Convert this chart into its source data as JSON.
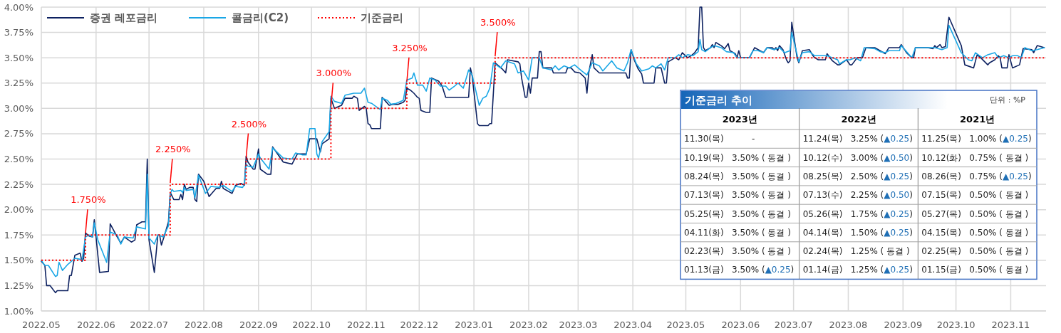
{
  "chart_data": [
    {
      "type": "line",
      "xlim": [
        "2022-05-01",
        "2023-11-21"
      ],
      "ylim": [
        1.0,
        4.0
      ],
      "xticks": [
        {
          "value": "2022-05",
          "label": "2022.05"
        },
        {
          "value": "2022-06",
          "label": "2022.06"
        },
        {
          "value": "2022-07",
          "label": "2022.07"
        },
        {
          "value": "2022-08",
          "label": "2022.08"
        },
        {
          "value": "2022-09",
          "label": "2022.09"
        },
        {
          "value": "2022-10",
          "label": "2022.10"
        },
        {
          "value": "2022-11",
          "label": "2022.11"
        },
        {
          "value": "2022-12",
          "label": "2022.12"
        },
        {
          "value": "2023-01",
          "label": "2023.01"
        },
        {
          "value": "2023-02",
          "label": "2023.02"
        },
        {
          "value": "2023-03",
          "label": "2023.03"
        },
        {
          "value": "2023-04",
          "label": "2023.04"
        },
        {
          "value": "2023-05",
          "label": "2023.05"
        },
        {
          "value": "2023-06",
          "label": "2023.06"
        },
        {
          "value": "2023-07",
          "label": "2023.07"
        },
        {
          "value": "2023-08",
          "label": "2023.08"
        },
        {
          "value": "2023-09",
          "label": "2023.09"
        },
        {
          "value": "2023-10",
          "label": "2023.10"
        },
        {
          "value": "2023-11",
          "label": "2023.11"
        }
      ],
      "yticks": [
        {
          "value": 1.0,
          "label": "1.00%"
        },
        {
          "value": 1.25,
          "label": "1.25%"
        },
        {
          "value": 1.5,
          "label": "1.50%"
        },
        {
          "value": 1.75,
          "label": "1.75%"
        },
        {
          "value": 2.0,
          "label": "2.00%"
        },
        {
          "value": 2.25,
          "label": "2.25%"
        },
        {
          "value": 2.5,
          "label": "2.50%"
        },
        {
          "value": 2.75,
          "label": "2.75%"
        },
        {
          "value": 3.0,
          "label": "3.00%"
        },
        {
          "value": 3.25,
          "label": "3.25%"
        },
        {
          "value": 3.5,
          "label": "3.50%"
        },
        {
          "value": 3.75,
          "label": "3.75%"
        },
        {
          "value": 4.0,
          "label": "4.00%"
        }
      ],
      "grid": true,
      "legend": "top left",
      "marker": "none",
      "series": [
        {
          "name": "증권 레포금리",
          "color": "#0d2160",
          "line_style": "solid",
          "x": [
            "2022-05-01",
            "2022-05-03",
            "2022-05-04",
            "2022-05-06",
            "2022-05-09",
            "2022-05-10",
            "2022-05-16",
            "2022-05-17",
            "2022-05-18",
            "2022-05-20",
            "2022-05-23",
            "2022-05-24",
            "2022-05-25",
            "2022-05-26",
            "2022-05-28",
            "2022-05-30",
            "2022-05-31",
            "2022-06-03",
            "2022-06-08",
            "2022-06-09",
            "2022-06-13",
            "2022-06-15",
            "2022-06-17",
            "2022-06-21",
            "2022-06-23",
            "2022-06-24",
            "2022-06-27",
            "2022-06-29",
            "2022-06-30",
            "2022-07-01",
            "2022-07-04",
            "2022-07-06",
            "2022-07-07",
            "2022-07-08",
            "2022-07-10",
            "2022-07-12",
            "2022-07-13",
            "2022-07-15",
            "2022-07-18",
            "2022-07-19",
            "2022-07-20",
            "2022-07-21",
            "2022-07-22",
            "2022-07-24",
            "2022-07-26",
            "2022-07-27",
            "2022-07-28",
            "2022-07-29",
            "2022-08-01",
            "2022-08-04",
            "2022-08-08",
            "2022-08-10",
            "2022-08-11",
            "2022-08-12",
            "2022-08-17",
            "2022-08-19",
            "2022-08-22",
            "2022-08-24",
            "2022-08-25",
            "2022-08-26",
            "2022-08-29",
            "2022-08-30",
            "2022-09-01",
            "2022-09-02",
            "2022-09-06",
            "2022-09-08",
            "2022-09-09",
            "2022-09-15",
            "2022-09-20",
            "2022-09-23",
            "2022-09-28",
            "2022-09-30",
            "2022-10-04",
            "2022-10-06",
            "2022-10-07",
            "2022-10-11",
            "2022-10-12",
            "2022-10-14",
            "2022-10-18",
            "2022-10-20",
            "2022-10-24",
            "2022-10-25",
            "2022-10-27",
            "2022-10-28",
            "2022-10-31",
            "2022-11-01",
            "2022-11-02",
            "2022-11-03",
            "2022-11-04",
            "2022-11-09",
            "2022-11-10",
            "2022-11-12",
            "2022-11-14",
            "2022-11-16",
            "2022-11-19",
            "2022-11-22",
            "2022-11-23",
            "2022-11-24",
            "2022-11-26",
            "2022-11-28",
            "2022-11-30",
            "2022-12-01",
            "2022-12-02",
            "2022-12-05",
            "2022-12-07",
            "2022-12-08",
            "2022-12-12",
            "2022-12-14",
            "2022-12-16",
            "2022-12-29",
            "2022-12-30",
            "2022-12-31",
            "2023-01-03",
            "2023-01-04",
            "2023-01-09",
            "2023-01-10",
            "2023-01-11",
            "2023-01-13",
            "2023-01-17",
            "2023-01-19",
            "2023-01-20",
            "2023-01-26",
            "2023-01-27",
            "2023-01-28",
            "2023-01-30",
            "2023-01-31",
            "2023-02-01",
            "2023-02-02",
            "2023-02-03",
            "2023-02-06",
            "2023-02-07",
            "2023-02-08",
            "2023-02-09",
            "2023-02-14",
            "2023-02-15",
            "2023-02-22",
            "2023-02-23",
            "2023-02-25",
            "2023-02-27",
            "2023-03-02",
            "2023-03-05",
            "2023-03-06",
            "2023-03-07",
            "2023-03-09",
            "2023-03-10",
            "2023-03-13",
            "2023-03-28",
            "2023-03-29",
            "2023-03-30",
            "2023-03-31",
            "2023-04-02",
            "2023-04-04",
            "2023-04-06",
            "2023-04-07",
            "2023-04-13",
            "2023-04-14",
            "2023-04-17",
            "2023-04-19",
            "2023-04-20",
            "2023-04-21",
            "2023-04-25",
            "2023-04-27",
            "2023-04-29",
            "2023-05-02",
            "2023-05-04",
            "2023-05-06",
            "2023-05-08",
            "2023-05-09",
            "2023-05-10",
            "2023-05-11",
            "2023-05-12",
            "2023-05-15",
            "2023-05-16",
            "2023-05-17",
            "2023-05-18",
            "2023-05-21",
            "2023-05-23",
            "2023-05-25",
            "2023-05-26",
            "2023-05-29",
            "2023-05-30",
            "2023-05-31",
            "2023-06-01",
            "2023-06-06",
            "2023-06-09",
            "2023-06-12",
            "2023-06-14",
            "2023-06-16",
            "2023-06-19",
            "2023-06-20",
            "2023-06-21",
            "2023-06-22",
            "2023-06-23",
            "2023-06-25",
            "2023-06-27",
            "2023-06-28",
            "2023-06-29",
            "2023-06-30",
            "2023-07-03",
            "2023-07-04",
            "2023-07-06",
            "2023-07-10",
            "2023-07-12",
            "2023-07-13",
            "2023-07-15",
            "2023-07-19",
            "2023-07-20",
            "2023-07-23",
            "2023-07-26",
            "2023-07-27",
            "2023-07-31",
            "2023-08-02",
            "2023-08-03",
            "2023-08-06",
            "2023-08-09",
            "2023-08-11",
            "2023-08-16",
            "2023-08-19",
            "2023-08-22",
            "2023-08-24",
            "2023-08-30",
            "2023-08-31",
            "2023-09-03",
            "2023-09-06",
            "2023-09-07",
            "2023-09-08",
            "2023-09-15",
            "2023-09-18",
            "2023-09-19",
            "2023-09-20",
            "2023-09-22",
            "2023-09-23",
            "2023-09-25",
            "2023-09-27",
            "2023-10-04",
            "2023-10-06",
            "2023-10-11",
            "2023-10-13",
            "2023-10-15",
            "2023-10-19",
            "2023-10-20",
            "2023-10-23",
            "2023-10-25",
            "2023-10-26",
            "2023-10-27",
            "2023-10-30",
            "2023-10-31",
            "2023-11-02",
            "2023-11-06",
            "2023-11-08",
            "2023-11-13",
            "2023-11-14",
            "2023-11-16",
            "2023-11-20"
          ],
          "values": [
            1.49,
            1.45,
            1.25,
            1.25,
            1.18,
            1.2,
            1.2,
            1.35,
            1.35,
            1.55,
            1.57,
            1.49,
            1.52,
            1.77,
            1.74,
            1.73,
            1.9,
            1.38,
            1.39,
            1.86,
            1.73,
            1.67,
            1.73,
            1.68,
            1.7,
            1.85,
            1.88,
            1.88,
            2.5,
            1.7,
            1.38,
            1.75,
            1.75,
            1.65,
            1.76,
            1.88,
            2.17,
            2.1,
            2.1,
            2.15,
            2.1,
            2.25,
            2.2,
            2.22,
            2.22,
            2.1,
            2.08,
            2.35,
            2.28,
            2.13,
            2.21,
            2.21,
            2.28,
            2.21,
            2.16,
            2.24,
            2.26,
            2.24,
            2.53,
            2.47,
            2.4,
            2.4,
            2.6,
            2.4,
            2.35,
            2.35,
            2.62,
            2.47,
            2.45,
            2.55,
            2.55,
            2.7,
            2.7,
            2.57,
            2.65,
            2.7,
            3.1,
            3.0,
            3.03,
            3.1,
            3.1,
            3.12,
            3.1,
            2.98,
            3.02,
            3.0,
            2.85,
            2.84,
            2.8,
            2.8,
            3.11,
            3.07,
            3.03,
            3.04,
            3.04,
            3.06,
            3.08,
            3.2,
            3.18,
            3.15,
            3.11,
            3.1,
            2.98,
            2.96,
            2.96,
            3.3,
            3.27,
            3.22,
            3.11,
            3.11,
            3.4,
            3.32,
            2.85,
            2.83,
            2.83,
            2.85,
            2.85,
            3.45,
            3.39,
            3.35,
            3.48,
            3.46,
            3.44,
            3.3,
            3.11,
            3.11,
            3.25,
            3.15,
            3.3,
            3.3,
            3.56,
            3.56,
            3.4,
            3.4,
            3.35,
            3.35,
            3.4,
            3.4,
            3.36,
            3.35,
            3.3,
            3.15,
            3.35,
            3.53,
            3.4,
            3.35,
            3.35,
            3.3,
            3.3,
            3.58,
            3.47,
            3.39,
            3.34,
            3.25,
            3.25,
            3.4,
            3.4,
            3.25,
            3.25,
            3.46,
            3.5,
            3.48,
            3.55,
            3.5,
            3.52,
            3.55,
            3.6,
            4.0,
            4.0,
            3.6,
            3.57,
            3.6,
            3.63,
            3.6,
            3.65,
            3.62,
            3.59,
            3.64,
            3.57,
            3.54,
            3.5,
            3.57,
            3.5,
            3.5,
            3.6,
            3.57,
            3.55,
            3.6,
            3.6,
            3.58,
            3.6,
            3.57,
            3.62,
            3.58,
            3.48,
            3.45,
            3.47,
            3.85,
            3.5,
            3.45,
            3.57,
            3.58,
            3.52,
            3.5,
            3.48,
            3.48,
            3.54,
            3.47,
            3.43,
            3.43,
            3.48,
            3.43,
            3.43,
            3.5,
            3.5,
            3.6,
            3.6,
            3.57,
            3.54,
            3.6,
            3.6,
            3.63,
            3.55,
            3.5,
            3.5,
            3.6,
            3.6,
            3.59,
            3.62,
            3.6,
            3.63,
            3.6,
            3.61,
            3.9,
            3.62,
            3.43,
            3.4,
            3.53,
            3.5,
            3.43,
            3.45,
            3.48,
            3.52,
            3.5,
            3.4,
            3.4,
            3.53,
            3.4,
            3.43,
            3.59,
            3.58,
            3.55,
            3.62,
            3.6
          ]
        },
        {
          "name": "콜금리(C2)",
          "color": "#1aa7e6",
          "line_style": "solid",
          "x": [
            "2022-05-01",
            "2022-05-03",
            "2022-05-05",
            "2022-05-09",
            "2022-05-10",
            "2022-05-11",
            "2022-05-13",
            "2022-05-16",
            "2022-05-20",
            "2022-05-23",
            "2022-05-24",
            "2022-05-26",
            "2022-05-28",
            "2022-05-30",
            "2022-05-31",
            "2022-06-02",
            "2022-06-07",
            "2022-06-09",
            "2022-06-13",
            "2022-06-15",
            "2022-06-17",
            "2022-06-22",
            "2022-06-24",
            "2022-06-29",
            "2022-06-30",
            "2022-07-01",
            "2022-07-04",
            "2022-07-06",
            "2022-07-09",
            "2022-07-12",
            "2022-07-13",
            "2022-07-14",
            "2022-07-15",
            "2022-07-19",
            "2022-07-20",
            "2022-07-21",
            "2022-07-22",
            "2022-07-26",
            "2022-07-27",
            "2022-07-29",
            "2022-08-02",
            "2022-08-05",
            "2022-08-10",
            "2022-08-12",
            "2022-08-17",
            "2022-08-19",
            "2022-08-23",
            "2022-08-24",
            "2022-08-25",
            "2022-08-26",
            "2022-08-29",
            "2022-09-01",
            "2022-09-02",
            "2022-09-07",
            "2022-09-09",
            "2022-09-15",
            "2022-09-20",
            "2022-09-22",
            "2022-09-26",
            "2022-09-28",
            "2022-09-30",
            "2022-10-03",
            "2022-10-04",
            "2022-10-05",
            "2022-10-07",
            "2022-10-11",
            "2022-10-12",
            "2022-10-14",
            "2022-10-18",
            "2022-10-20",
            "2022-10-25",
            "2022-10-29",
            "2022-10-31",
            "2022-11-02",
            "2022-11-04",
            "2022-11-08",
            "2022-11-09",
            "2022-11-10",
            "2022-11-13",
            "2022-11-15",
            "2022-11-18",
            "2022-11-22",
            "2022-11-24",
            "2022-11-27",
            "2022-11-28",
            "2022-11-30",
            "2022-12-03",
            "2022-12-05",
            "2022-12-07",
            "2022-12-10",
            "2022-12-13",
            "2022-12-16",
            "2022-12-18",
            "2022-12-21",
            "2022-12-23",
            "2022-12-26",
            "2022-12-29",
            "2022-12-31",
            "2023-01-04",
            "2023-01-06",
            "2023-01-08",
            "2023-01-10",
            "2023-01-12",
            "2023-01-16",
            "2023-01-19",
            "2023-01-24",
            "2023-01-26",
            "2023-01-29",
            "2023-02-01",
            "2023-02-03",
            "2023-02-07",
            "2023-02-09",
            "2023-02-14",
            "2023-02-16",
            "2023-02-18",
            "2023-02-21",
            "2023-02-24",
            "2023-02-27",
            "2023-03-03",
            "2023-03-06",
            "2023-03-09",
            "2023-03-13",
            "2023-03-15",
            "2023-03-20",
            "2023-03-23",
            "2023-03-27",
            "2023-03-29",
            "2023-03-31",
            "2023-04-03",
            "2023-04-06",
            "2023-04-10",
            "2023-04-12",
            "2023-04-14",
            "2023-04-17",
            "2023-04-19",
            "2023-04-21",
            "2023-04-25",
            "2023-04-27",
            "2023-04-29",
            "2023-05-02",
            "2023-05-05",
            "2023-05-08",
            "2023-05-09",
            "2023-05-10",
            "2023-05-12",
            "2023-05-15",
            "2023-05-17",
            "2023-05-21",
            "2023-05-24",
            "2023-05-28",
            "2023-05-30",
            "2023-06-03",
            "2023-06-06",
            "2023-06-08",
            "2023-06-11",
            "2023-06-14",
            "2023-06-16",
            "2023-06-20",
            "2023-06-23",
            "2023-06-26",
            "2023-06-29",
            "2023-06-30",
            "2023-07-04",
            "2023-07-06",
            "2023-07-10",
            "2023-07-13",
            "2023-07-16",
            "2023-07-20",
            "2023-07-23",
            "2023-07-26",
            "2023-07-27",
            "2023-07-31",
            "2023-08-02",
            "2023-08-05",
            "2023-08-08",
            "2023-08-10",
            "2023-08-16",
            "2023-08-19",
            "2023-08-22",
            "2023-08-24",
            "2023-08-30",
            "2023-08-31",
            "2023-09-03",
            "2023-09-06",
            "2023-09-08",
            "2023-09-15",
            "2023-09-19",
            "2023-09-23",
            "2023-09-26",
            "2023-09-27",
            "2023-10-04",
            "2023-10-08",
            "2023-10-10",
            "2023-10-12",
            "2023-10-16",
            "2023-10-19",
            "2023-10-23",
            "2023-10-25",
            "2023-10-28",
            "2023-10-31",
            "2023-11-02",
            "2023-11-05",
            "2023-11-07",
            "2023-11-09",
            "2023-11-13",
            "2023-11-16",
            "2023-11-20"
          ],
          "values": [
            1.5,
            1.45,
            1.45,
            1.34,
            1.35,
            1.48,
            1.4,
            1.46,
            1.52,
            1.51,
            1.5,
            1.73,
            1.75,
            1.73,
            1.87,
            1.7,
            1.48,
            1.78,
            1.75,
            1.66,
            1.73,
            1.72,
            1.83,
            1.81,
            2.35,
            1.72,
            1.66,
            1.75,
            1.73,
            1.84,
            2.15,
            2.2,
            2.18,
            2.19,
            2.17,
            2.22,
            2.19,
            2.2,
            2.12,
            2.34,
            2.16,
            2.23,
            2.22,
            2.24,
            2.18,
            2.23,
            2.22,
            2.25,
            2.45,
            2.43,
            2.42,
            2.55,
            2.51,
            2.4,
            2.61,
            2.51,
            2.5,
            2.56,
            2.54,
            2.54,
            2.8,
            2.8,
            2.55,
            2.51,
            2.67,
            2.77,
            3.12,
            3.07,
            3.05,
            3.13,
            3.15,
            3.15,
            3.2,
            3.06,
            3.05,
            3.0,
            2.99,
            3.1,
            3.08,
            3.04,
            3.05,
            3.08,
            3.28,
            3.3,
            3.35,
            3.23,
            3.23,
            3.17,
            3.3,
            3.28,
            3.22,
            3.22,
            3.18,
            3.22,
            3.25,
            3.2,
            3.38,
            3.33,
            3.03,
            3.1,
            3.12,
            3.2,
            3.45,
            3.4,
            3.47,
            3.44,
            3.35,
            3.37,
            3.28,
            3.5,
            3.5,
            3.4,
            3.38,
            3.42,
            3.38,
            3.42,
            3.4,
            3.43,
            3.37,
            3.33,
            3.45,
            3.42,
            3.37,
            3.47,
            3.4,
            3.37,
            3.45,
            3.58,
            3.44,
            3.37,
            3.39,
            3.42,
            3.4,
            3.44,
            3.38,
            3.5,
            3.5,
            3.53,
            3.5,
            3.53,
            3.52,
            3.56,
            3.68,
            3.58,
            3.56,
            3.6,
            3.62,
            3.6,
            3.56,
            3.55,
            3.5,
            3.5,
            3.5,
            3.57,
            3.57,
            3.55,
            3.6,
            3.58,
            3.6,
            3.55,
            3.57,
            3.75,
            3.46,
            3.55,
            3.56,
            3.52,
            3.52,
            3.52,
            3.5,
            3.48,
            3.44,
            3.48,
            3.48,
            3.5,
            3.47,
            3.6,
            3.59,
            3.56,
            3.55,
            3.57,
            3.57,
            3.62,
            3.56,
            3.5,
            3.6,
            3.6,
            3.6,
            3.58,
            3.6,
            3.82,
            3.55,
            3.48,
            3.47,
            3.55,
            3.5,
            3.53,
            3.55,
            3.5,
            3.52,
            3.5,
            3.52,
            3.52,
            3.5,
            3.6,
            3.57,
            3.58,
            3.6
          ]
        },
        {
          "name": "기준금리",
          "type": "step",
          "color": "#ff0000",
          "line_style": "dotted",
          "x": [
            "2022-05-01",
            "2022-05-26",
            "2022-07-13",
            "2022-08-25",
            "2022-10-12",
            "2022-11-24",
            "2023-01-13",
            "2023-11-21"
          ],
          "values": [
            1.5,
            1.75,
            2.25,
            2.5,
            3.0,
            3.25,
            3.5,
            3.5
          ]
        }
      ],
      "annotations": [
        {
          "text": "1.750%",
          "x": "2022-05-26",
          "y": 1.75
        },
        {
          "text": "2.250%",
          "x": "2022-07-13",
          "y": 2.25
        },
        {
          "text": "2.500%",
          "x": "2022-08-25",
          "y": 2.5
        },
        {
          "text": "3.000%",
          "x": "2022-10-12",
          "y": 3.0
        },
        {
          "text": "3.250%",
          "x": "2022-11-24",
          "y": 3.25
        },
        {
          "text": "3.500%",
          "x": "2023-01-13",
          "y": 3.5
        }
      ]
    },
    {
      "type": "other",
      "title": "기준금리 추이",
      "annotations": [
        "단위 : %P"
      ],
      "categories": [
        "2023년",
        "2022년",
        "2021년"
      ],
      "cell_labels": [
        [
          "11.30(목) -",
          "11.24(목) 3.25% (▲0.25)",
          "11.25(목) 1.00% (▲0.25)"
        ],
        [
          "10.19(목) 3.50% ( 동결 )",
          "10.12(수) 3.00% (▲0.50)",
          "10.12(화) 0.75% ( 동결 )"
        ],
        [
          "08.24(목) 3.50% ( 동결 )",
          "08.25(목) 2.50% (▲0.25)",
          "08.26(목) 0.75% (▲0.25)"
        ],
        [
          "07.13(목) 3.50% ( 동결 )",
          "07.13(수) 2.25% (▲0.50)",
          "07.15(목) 0.50% ( 동결 )"
        ],
        [
          "05.25(목) 3.50% ( 동결 )",
          "05.26(목) 1.75% (▲0.25)",
          "05.27(목) 0.50% ( 동결 )"
        ],
        [
          "04.11(화) 3.50% ( 동결 )",
          "04.14(목) 1.50% (▲0.25)",
          "04.15(목) 0.50% ( 동결 )"
        ],
        [
          "02.23(목) 3.50% ( 동결 )",
          "02.24(목) 1.25% ( 동결 )",
          "02.25(목) 0.50% ( 동결 )"
        ],
        [
          "01.13(금) 3.50% (▲0.25)",
          "01.14(금) 1.25% (▲0.25)",
          "01.15(금) 0.50% ( 동결 )"
        ]
      ]
    }
  ]
}
